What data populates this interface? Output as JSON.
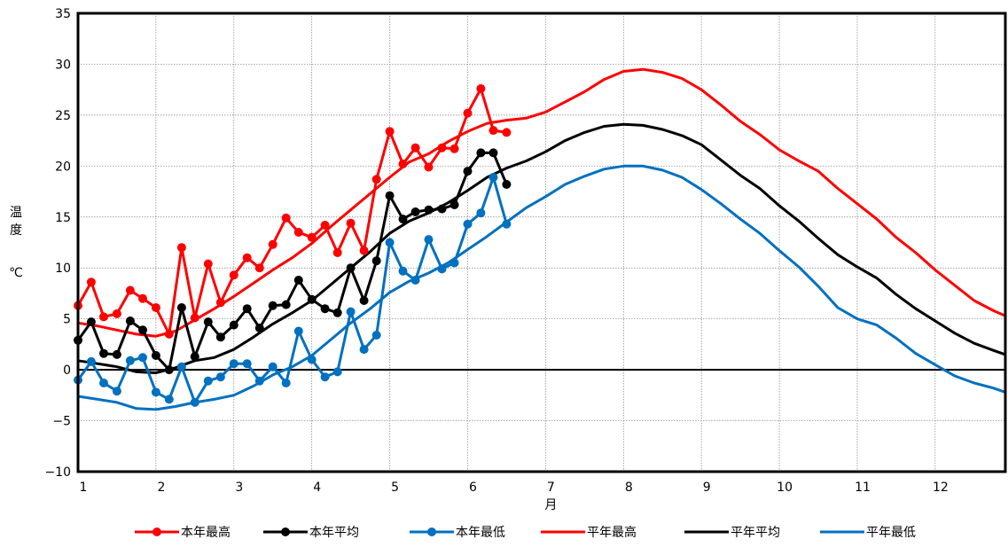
{
  "chart_data": {
    "type": "line",
    "xlabel": "月",
    "ylabel": [
      "温",
      "度",
      "℃"
    ],
    "ylim": [
      -10,
      35
    ],
    "yticks": [
      -10,
      -5,
      0,
      5,
      10,
      15,
      20,
      25,
      30,
      35
    ],
    "xlim": [
      1,
      12.9
    ],
    "xticks": [
      1,
      2,
      3,
      4,
      5,
      6,
      7,
      8,
      9,
      10,
      11,
      12
    ],
    "xtick_labels": [
      "1",
      "2",
      "3",
      "4",
      "5",
      "6",
      "7",
      "8",
      "9",
      "10",
      "11",
      "12"
    ],
    "grid": true,
    "legend_position": "bottom",
    "series": [
      {
        "name": "本年最高",
        "color": "#ff0000",
        "markers": true,
        "x": [
          1.0,
          1.17,
          1.33,
          1.5,
          1.67,
          1.83,
          2.0,
          2.17,
          2.33,
          2.5,
          2.67,
          2.83,
          3.0,
          3.17,
          3.33,
          3.5,
          3.67,
          3.83,
          4.0,
          4.17,
          4.33,
          4.5,
          4.67,
          4.83,
          5.0,
          5.17,
          5.33,
          5.5,
          5.67,
          5.83,
          6.0,
          6.17,
          6.33,
          6.5
        ],
        "y": [
          6.3,
          8.6,
          5.2,
          5.5,
          7.8,
          7.0,
          6.1,
          3.5,
          12.0,
          5.1,
          10.4,
          6.6,
          9.3,
          11.0,
          10.0,
          12.3,
          14.9,
          13.5,
          13.0,
          14.2,
          11.5,
          14.4,
          11.7,
          18.7,
          23.4,
          20.2,
          21.8,
          19.9,
          21.8,
          21.7,
          25.2,
          27.6,
          23.5,
          23.3
        ]
      },
      {
        "name": "本年平均",
        "color": "#000000",
        "markers": true,
        "x": [
          1.0,
          1.17,
          1.33,
          1.5,
          1.67,
          1.83,
          2.0,
          2.17,
          2.33,
          2.5,
          2.67,
          2.83,
          3.0,
          3.17,
          3.33,
          3.5,
          3.67,
          3.83,
          4.0,
          4.17,
          4.33,
          4.5,
          4.67,
          4.83,
          5.0,
          5.17,
          5.33,
          5.5,
          5.67,
          5.83,
          6.0,
          6.17,
          6.33,
          6.5
        ],
        "y": [
          2.9,
          4.7,
          1.6,
          1.5,
          4.8,
          3.9,
          1.4,
          0.0,
          6.1,
          1.3,
          4.7,
          3.2,
          4.4,
          6.0,
          4.1,
          6.3,
          6.4,
          8.8,
          6.9,
          6.0,
          5.6,
          10.0,
          6.8,
          10.7,
          17.1,
          14.8,
          15.5,
          15.7,
          15.8,
          16.2,
          19.5,
          21.3,
          21.3,
          18.2
        ]
      },
      {
        "name": "本年最低",
        "color": "#0070c0",
        "markers": true,
        "x": [
          1.0,
          1.17,
          1.33,
          1.5,
          1.67,
          1.83,
          2.0,
          2.17,
          2.33,
          2.5,
          2.67,
          2.83,
          3.0,
          3.17,
          3.33,
          3.5,
          3.67,
          3.83,
          4.0,
          4.17,
          4.33,
          4.5,
          4.67,
          4.83,
          5.0,
          5.17,
          5.33,
          5.5,
          5.67,
          5.83,
          6.0,
          6.17,
          6.33,
          6.5
        ],
        "y": [
          -1.0,
          0.8,
          -1.3,
          -2.1,
          0.9,
          1.2,
          -2.2,
          -2.9,
          0.3,
          -3.2,
          -1.1,
          -0.7,
          0.6,
          0.6,
          -1.1,
          0.3,
          -1.3,
          3.8,
          1.0,
          -0.7,
          -0.2,
          5.7,
          2.0,
          3.4,
          12.5,
          9.7,
          8.8,
          12.8,
          9.9,
          10.5,
          14.3,
          15.4,
          18.9,
          14.3
        ]
      },
      {
        "name": "平年最高",
        "color": "#ff0000",
        "markers": false,
        "x": [
          1.0,
          1.25,
          1.5,
          1.75,
          2.0,
          2.25,
          2.5,
          2.75,
          3.0,
          3.25,
          3.5,
          3.75,
          4.0,
          4.25,
          4.5,
          4.75,
          5.0,
          5.25,
          5.5,
          5.75,
          6.0,
          6.25,
          6.5,
          6.75,
          7.0,
          7.25,
          7.5,
          7.75,
          8.0,
          8.25,
          8.5,
          8.75,
          9.0,
          9.25,
          9.5,
          9.75,
          10.0,
          10.25,
          10.5,
          10.75,
          11.0,
          11.25,
          11.5,
          11.75,
          12.0,
          12.25,
          12.5,
          12.75,
          12.9
        ],
        "y": [
          4.6,
          4.3,
          3.9,
          3.5,
          3.3,
          3.8,
          4.9,
          6.0,
          7.2,
          8.5,
          9.8,
          11.0,
          12.4,
          14.1,
          15.7,
          17.3,
          18.9,
          20.4,
          21.2,
          22.4,
          23.4,
          24.2,
          24.5,
          24.7,
          25.3,
          26.3,
          27.3,
          28.5,
          29.3,
          29.5,
          29.2,
          28.6,
          27.5,
          26.0,
          24.4,
          23.1,
          21.6,
          20.5,
          19.5,
          17.8,
          16.3,
          14.8,
          13.0,
          11.5,
          9.8,
          8.3,
          6.8,
          5.8,
          5.3
        ]
      },
      {
        "name": "平年平均",
        "color": "#000000",
        "markers": false,
        "x": [
          1.0,
          1.25,
          1.5,
          1.75,
          2.0,
          2.25,
          2.5,
          2.75,
          3.0,
          3.25,
          3.5,
          3.75,
          4.0,
          4.25,
          4.5,
          4.75,
          5.0,
          5.25,
          5.5,
          5.75,
          6.0,
          6.25,
          6.5,
          6.75,
          7.0,
          7.25,
          7.5,
          7.75,
          8.0,
          8.25,
          8.5,
          8.75,
          9.0,
          9.25,
          9.5,
          9.75,
          10.0,
          10.25,
          10.5,
          10.75,
          11.0,
          11.25,
          11.5,
          11.75,
          12.0,
          12.25,
          12.5,
          12.75,
          12.9
        ],
        "y": [
          0.9,
          0.6,
          0.3,
          -0.2,
          -0.3,
          0.2,
          0.9,
          1.2,
          2.0,
          3.2,
          4.5,
          5.6,
          6.8,
          8.4,
          10.0,
          11.6,
          13.4,
          14.6,
          15.4,
          16.4,
          17.6,
          18.9,
          19.8,
          20.5,
          21.4,
          22.5,
          23.3,
          23.9,
          24.1,
          24.0,
          23.6,
          23.0,
          22.1,
          20.6,
          19.1,
          17.8,
          16.1,
          14.6,
          12.9,
          11.3,
          10.1,
          9.0,
          7.4,
          6.0,
          4.8,
          3.6,
          2.6,
          1.9,
          1.5
        ]
      },
      {
        "name": "平年最低",
        "color": "#0070c0",
        "markers": false,
        "x": [
          1.0,
          1.25,
          1.5,
          1.75,
          2.0,
          2.25,
          2.5,
          2.75,
          3.0,
          3.25,
          3.5,
          3.75,
          4.0,
          4.25,
          4.5,
          4.75,
          5.0,
          5.25,
          5.5,
          5.75,
          6.0,
          6.25,
          6.5,
          6.75,
          7.0,
          7.25,
          7.5,
          7.75,
          8.0,
          8.25,
          8.5,
          8.75,
          9.0,
          9.25,
          9.5,
          9.75,
          10.0,
          10.25,
          10.5,
          10.75,
          11.0,
          11.25,
          11.5,
          11.75,
          12.0,
          12.25,
          12.5,
          12.75,
          12.9
        ],
        "y": [
          -2.6,
          -2.9,
          -3.2,
          -3.8,
          -3.9,
          -3.6,
          -3.2,
          -2.9,
          -2.5,
          -1.6,
          -0.5,
          0.3,
          1.4,
          3.0,
          4.6,
          6.0,
          7.6,
          8.7,
          9.5,
          10.5,
          11.8,
          13.1,
          14.5,
          15.9,
          17.0,
          18.2,
          19.0,
          19.7,
          20.0,
          20.0,
          19.6,
          18.9,
          17.7,
          16.3,
          14.8,
          13.4,
          11.7,
          10.1,
          8.2,
          6.1,
          5.0,
          4.4,
          3.1,
          1.6,
          0.5,
          -0.6,
          -1.3,
          -1.8,
          -2.2
        ]
      }
    ]
  }
}
